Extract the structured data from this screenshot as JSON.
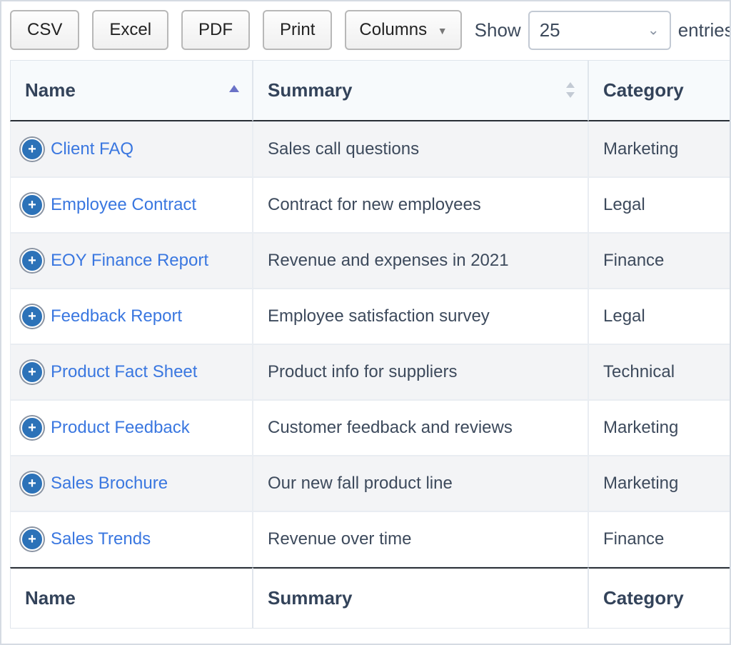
{
  "toolbar": {
    "csv_label": "CSV",
    "excel_label": "Excel",
    "pdf_label": "PDF",
    "print_label": "Print",
    "columns_label": "Columns",
    "show_label": "Show",
    "page_size": "25",
    "entries_label": "entries"
  },
  "table": {
    "columns": [
      "Name",
      "Summary",
      "Category"
    ],
    "sorted_column_index": 0,
    "sort_direction": "asc",
    "rows": [
      {
        "name": "Client FAQ",
        "summary": "Sales call questions",
        "category": "Marketing"
      },
      {
        "name": "Employee Contract",
        "summary": "Contract for new employees",
        "category": "Legal"
      },
      {
        "name": "EOY Finance Report",
        "summary": "Revenue and expenses in 2021",
        "category": "Finance"
      },
      {
        "name": "Feedback Report",
        "summary": "Employee satisfaction survey",
        "category": "Legal"
      },
      {
        "name": "Product Fact Sheet",
        "summary": "Product info for suppliers",
        "category": "Technical"
      },
      {
        "name": "Product Feedback",
        "summary": "Customer feedback and reviews",
        "category": "Marketing"
      },
      {
        "name": "Sales Brochure",
        "summary": "Our new fall product line",
        "category": "Marketing"
      },
      {
        "name": "Sales Trends",
        "summary": "Revenue over time",
        "category": "Finance"
      }
    ]
  },
  "style": {
    "link_color": "#3a77e0",
    "header_bg": "#f7fafc",
    "row_odd_bg": "#f3f4f6",
    "row_even_bg": "#ffffff",
    "border_color": "#d5dbe3",
    "text_color": "#3d4a5c",
    "expand_icon_bg": "#2c72b8",
    "sort_arrow_color": "#6a72c7"
  }
}
